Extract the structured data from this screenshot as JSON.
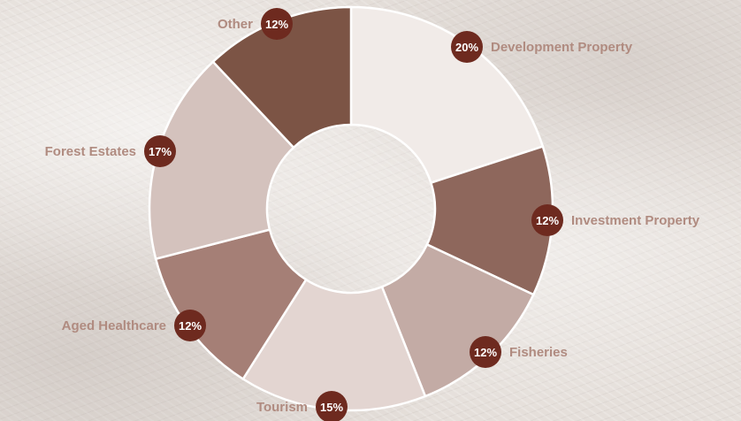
{
  "chart_data": {
    "type": "pie",
    "style": "donut",
    "slices": [
      {
        "label": "Development Property",
        "value": 20,
        "value_label": "20%",
        "color": "#f1ebe8"
      },
      {
        "label": "Investment Property",
        "value": 12,
        "value_label": "12%",
        "color": "#8e675c"
      },
      {
        "label": "Fisheries",
        "value": 12,
        "value_label": "12%",
        "color": "#c3aba5"
      },
      {
        "label": "Tourism",
        "value": 15,
        "value_label": "15%",
        "color": "#e3d5d1"
      },
      {
        "label": "Aged Healthcare",
        "value": 12,
        "value_label": "12%",
        "color": "#a57f76"
      },
      {
        "label": "Forest Estates",
        "value": 17,
        "value_label": "17%",
        "color": "#d4c2bd"
      },
      {
        "label": "Other",
        "value": 12,
        "value_label": "12%",
        "color": "#7c5445"
      }
    ],
    "label_color": "#b08b80",
    "badge_color": "#6e2a1f"
  }
}
